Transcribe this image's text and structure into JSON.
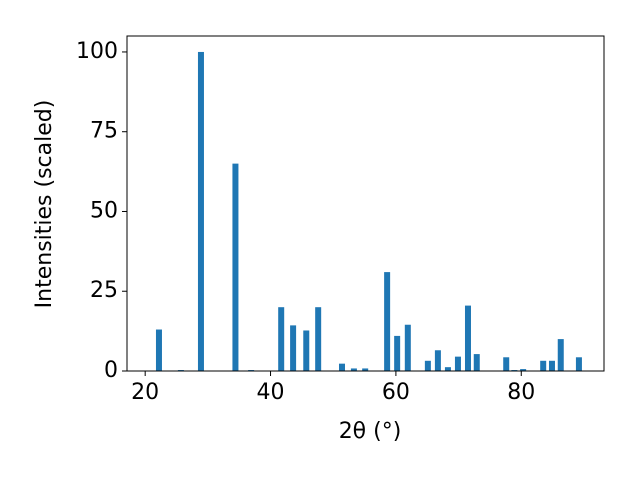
{
  "chart_data": {
    "type": "bar",
    "xlabel": "2θ (°)",
    "ylabel": "Intensities (scaled)",
    "x": [
      22.2,
      25.7,
      28.9,
      34.4,
      36.9,
      41.7,
      43.6,
      45.7,
      47.6,
      51.4,
      53.3,
      55.1,
      58.6,
      60.2,
      61.9,
      65.1,
      66.7,
      68.3,
      69.9,
      71.5,
      72.9,
      77.6,
      78.9,
      80.3,
      83.5,
      84.9,
      86.3,
      89.2
    ],
    "values": [
      13,
      0.3,
      100,
      65,
      0.3,
      20,
      14.3,
      12.7,
      20,
      2.3,
      0.8,
      0.8,
      31,
      11,
      14.5,
      3.2,
      6.5,
      1.2,
      4.5,
      20.5,
      5.3,
      4.3,
      0.3,
      0.6,
      3.2,
      3.2,
      10,
      4.3
    ],
    "color": "#1f77b4",
    "xlim": [
      17.1,
      93.2
    ],
    "xticks": [
      20,
      40,
      60,
      80
    ],
    "ylim": [
      0,
      105
    ],
    "yticks": [
      0,
      25,
      50,
      75,
      100
    ]
  }
}
